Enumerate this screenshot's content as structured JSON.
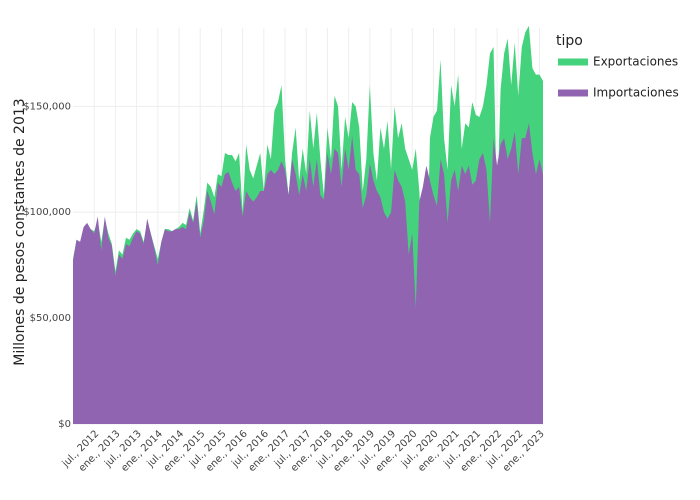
{
  "chart_data": {
    "type": "area",
    "y_label": "Millones de pesos constantes de 2013",
    "legend_title": "tipo",
    "grid": true,
    "x": [
      "2012-01",
      "2012-02",
      "2012-03",
      "2012-04",
      "2012-05",
      "2012-06",
      "2012-07",
      "2012-08",
      "2012-09",
      "2012-10",
      "2012-11",
      "2012-12",
      "2013-01",
      "2013-02",
      "2013-03",
      "2013-04",
      "2013-05",
      "2013-06",
      "2013-07",
      "2013-08",
      "2013-09",
      "2013-10",
      "2013-11",
      "2013-12",
      "2014-01",
      "2014-02",
      "2014-03",
      "2014-04",
      "2014-05",
      "2014-06",
      "2014-07",
      "2014-08",
      "2014-09",
      "2014-10",
      "2014-11",
      "2014-12",
      "2015-01",
      "2015-02",
      "2015-03",
      "2015-04",
      "2015-05",
      "2015-06",
      "2015-07",
      "2015-08",
      "2015-09",
      "2015-10",
      "2015-11",
      "2015-12",
      "2016-01",
      "2016-02",
      "2016-03",
      "2016-04",
      "2016-05",
      "2016-06",
      "2016-07",
      "2016-08",
      "2016-09",
      "2016-10",
      "2016-11",
      "2016-12",
      "2017-01",
      "2017-02",
      "2017-03",
      "2017-04",
      "2017-05",
      "2017-06",
      "2017-07",
      "2017-08",
      "2017-09",
      "2017-10",
      "2017-11",
      "2017-12",
      "2018-01",
      "2018-02",
      "2018-03",
      "2018-04",
      "2018-05",
      "2018-06",
      "2018-07",
      "2018-08",
      "2018-09",
      "2018-10",
      "2018-11",
      "2018-12",
      "2019-01",
      "2019-02",
      "2019-03",
      "2019-04",
      "2019-05",
      "2019-06",
      "2019-07",
      "2019-08",
      "2019-09",
      "2019-10",
      "2019-11",
      "2019-12",
      "2020-01",
      "2020-02",
      "2020-03",
      "2020-04",
      "2020-05",
      "2020-06",
      "2020-07",
      "2020-08",
      "2020-09",
      "2020-10",
      "2020-11",
      "2020-12",
      "2021-01",
      "2021-02",
      "2021-03",
      "2021-04",
      "2021-05",
      "2021-06",
      "2021-07",
      "2021-08",
      "2021-09",
      "2021-10",
      "2021-11",
      "2021-12",
      "2022-01",
      "2022-02",
      "2022-03",
      "2022-04",
      "2022-05",
      "2022-06",
      "2022-07",
      "2022-08",
      "2022-09",
      "2022-10",
      "2022-11",
      "2022-12",
      "2023-01",
      "2023-02"
    ],
    "series": [
      {
        "name": "Exportaciones",
        "color": "#44d27c",
        "values": [
          78000,
          87000,
          86000,
          90000,
          94000,
          92000,
          91000,
          96000,
          86000,
          97000,
          90000,
          85000,
          72000,
          82000,
          80000,
          88000,
          87000,
          90000,
          92000,
          91000,
          86000,
          96000,
          90000,
          84000,
          78000,
          86000,
          92000,
          92000,
          91000,
          92000,
          93000,
          95000,
          94000,
          102000,
          96000,
          108000,
          90000,
          101000,
          114000,
          112000,
          107000,
          118000,
          117000,
          128000,
          127000,
          127000,
          124000,
          128000,
          100000,
          132000,
          120000,
          116000,
          122000,
          128000,
          110000,
          132000,
          125000,
          148000,
          152000,
          160000,
          125000,
          108000,
          128000,
          140000,
          115000,
          130000,
          118000,
          148000,
          130000,
          147000,
          125000,
          108000,
          140000,
          125000,
          155000,
          150000,
          120000,
          145000,
          135000,
          152000,
          150000,
          140000,
          110000,
          125000,
          160000,
          128000,
          115000,
          140000,
          130000,
          143000,
          120000,
          150000,
          135000,
          142000,
          130000,
          125000,
          120000,
          130000,
          110000,
          80000,
          60000,
          135000,
          145000,
          148000,
          172000,
          135000,
          120000,
          160000,
          150000,
          165000,
          130000,
          142000,
          140000,
          152000,
          146000,
          145000,
          150000,
          160000,
          175000,
          178000,
          100000,
          158000,
          175000,
          182000,
          160000,
          180000,
          155000,
          178000,
          185000,
          188000,
          168000,
          165000,
          165000,
          162000
        ]
      },
      {
        "name": "Importaciones",
        "color": "#9064b0",
        "values": [
          77000,
          87000,
          86000,
          93000,
          95000,
          92000,
          90000,
          98000,
          82000,
          98000,
          88000,
          84000,
          70000,
          80000,
          78000,
          85000,
          84000,
          88000,
          91000,
          90000,
          85000,
          97000,
          90000,
          83000,
          75000,
          86000,
          92000,
          91000,
          91000,
          92000,
          92000,
          93000,
          92000,
          100000,
          95000,
          105000,
          88000,
          96000,
          110000,
          105000,
          99000,
          114000,
          112000,
          118000,
          119000,
          114000,
          110000,
          112000,
          98000,
          110000,
          107000,
          105000,
          107000,
          110000,
          110000,
          118000,
          120000,
          118000,
          120000,
          124000,
          120000,
          108000,
          125000,
          118000,
          108000,
          118000,
          110000,
          125000,
          112000,
          125000,
          108000,
          106000,
          128000,
          118000,
          130000,
          128000,
          112000,
          130000,
          120000,
          136000,
          120000,
          118000,
          102000,
          108000,
          123000,
          115000,
          110000,
          107000,
          100000,
          97000,
          100000,
          120000,
          115000,
          112000,
          105000,
          80000,
          90000,
          55000,
          105000,
          112000,
          122000,
          115000,
          108000,
          103000,
          125000,
          118000,
          95000,
          115000,
          120000,
          110000,
          122000,
          118000,
          122000,
          113000,
          115000,
          125000,
          128000,
          120000,
          95000,
          135000,
          122000,
          132000,
          135000,
          125000,
          130000,
          138000,
          118000,
          135000,
          135000,
          142000,
          128000,
          118000,
          125000,
          118000
        ]
      }
    ],
    "xlim": [
      "2012-01",
      "2023-02"
    ],
    "xticks": [
      {
        "value": "2012-07",
        "label": "jul., 2012"
      },
      {
        "value": "2013-01",
        "label": "ene., 2013"
      },
      {
        "value": "2013-07",
        "label": "jul., 2013"
      },
      {
        "value": "2014-01",
        "label": "ene., 2014"
      },
      {
        "value": "2014-07",
        "label": "jul., 2014"
      },
      {
        "value": "2015-01",
        "label": "ene., 2015"
      },
      {
        "value": "2015-07",
        "label": "jul., 2015"
      },
      {
        "value": "2016-01",
        "label": "ene., 2016"
      },
      {
        "value": "2016-07",
        "label": "jul., 2016"
      },
      {
        "value": "2017-01",
        "label": "ene., 2017"
      },
      {
        "value": "2017-07",
        "label": "jul., 2017"
      },
      {
        "value": "2018-01",
        "label": "ene., 2018"
      },
      {
        "value": "2018-07",
        "label": "jul., 2018"
      },
      {
        "value": "2019-01",
        "label": "ene., 2019"
      },
      {
        "value": "2019-07",
        "label": "jul., 2019"
      },
      {
        "value": "2020-01",
        "label": "ene., 2020"
      },
      {
        "value": "2020-07",
        "label": "jul., 2020"
      },
      {
        "value": "2021-01",
        "label": "ene., 2021"
      },
      {
        "value": "2021-07",
        "label": "jul., 2021"
      },
      {
        "value": "2022-01",
        "label": "ene., 2022"
      },
      {
        "value": "2022-07",
        "label": "jul., 2022"
      },
      {
        "value": "2023-01",
        "label": "ene., 2023"
      }
    ],
    "ylim": [
      0,
      187000
    ],
    "yticks": [
      {
        "value": 0,
        "label": "$0"
      },
      {
        "value": 50000,
        "label": "$50,000"
      },
      {
        "value": 100000,
        "label": "$100,000"
      },
      {
        "value": 150000,
        "label": "$150,000"
      }
    ]
  }
}
